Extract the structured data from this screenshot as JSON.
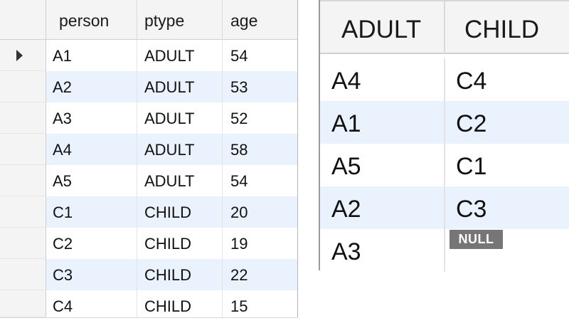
{
  "left_grid": {
    "columns": [
      "person",
      "ptype",
      "age"
    ],
    "rows": [
      {
        "person": "A1",
        "ptype": "ADULT",
        "age": "54"
      },
      {
        "person": "A2",
        "ptype": "ADULT",
        "age": "53"
      },
      {
        "person": "A3",
        "ptype": "ADULT",
        "age": "52"
      },
      {
        "person": "A4",
        "ptype": "ADULT",
        "age": "58"
      },
      {
        "person": "A5",
        "ptype": "ADULT",
        "age": "54"
      },
      {
        "person": "C1",
        "ptype": "CHILD",
        "age": "20"
      },
      {
        "person": "C2",
        "ptype": "CHILD",
        "age": "19"
      },
      {
        "person": "C3",
        "ptype": "CHILD",
        "age": "22"
      },
      {
        "person": "C4",
        "ptype": "CHILD",
        "age": "15"
      }
    ],
    "current_row_index": 0,
    "current_row_icon": "row-pointer-icon"
  },
  "right_grid": {
    "columns": [
      "ADULT",
      "CHILD"
    ],
    "rows": [
      {
        "adult": "A4",
        "child": "C4"
      },
      {
        "adult": "A1",
        "child": "C2"
      },
      {
        "adult": "A5",
        "child": "C1"
      },
      {
        "adult": "A2",
        "child": "C3"
      },
      {
        "adult": "A3",
        "child": ""
      }
    ],
    "null_label": "NULL"
  },
  "colors": {
    "alt_row": "#eaf2fd",
    "header_bg": "#f4f4f4",
    "null_badge": "#767676"
  }
}
